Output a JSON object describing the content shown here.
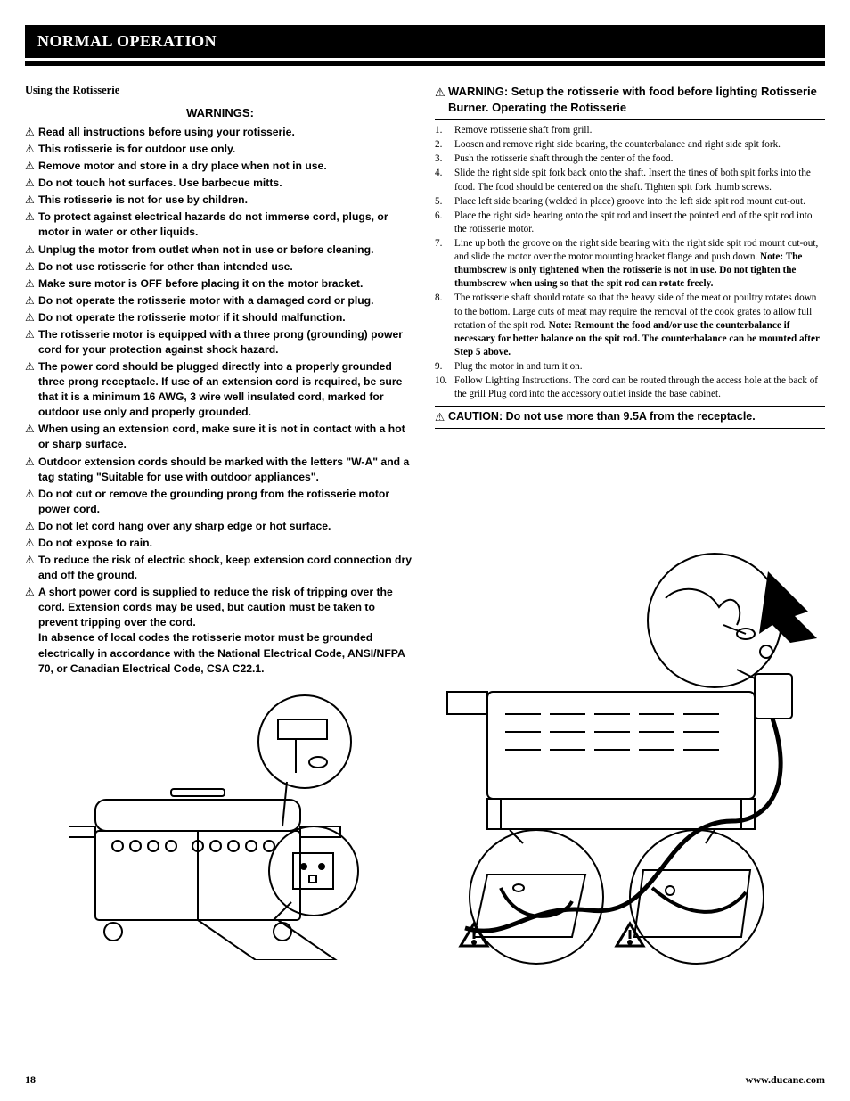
{
  "header": {
    "title": "NORMAL OPERATION"
  },
  "left": {
    "subtitle": "Using the Rotisserie",
    "warnings_title": "WARNINGS:",
    "warnings": [
      "Read all instructions before using your rotisserie.",
      "This rotisserie is for outdoor use only.",
      "Remove motor and store in a dry place when not in use.",
      "Do not touch hot surfaces. Use barbecue mitts.",
      "This rotisserie is not for use by children.",
      "To protect against electrical hazards do not immerse cord, plugs, or motor in water or other liquids.",
      "Unplug the motor from outlet when not in use or before cleaning.",
      "Do not use rotisserie for other than intended use.",
      "Make sure motor is OFF before placing it on the motor bracket.",
      "Do not operate the rotisserie motor with a damaged cord or plug.",
      "Do not operate the rotisserie motor if it should malfunction.",
      "The rotisserie motor is equipped with a three prong (grounding) power cord for your protection against shock hazard.",
      "The power cord should be plugged directly into a properly grounded three prong receptacle. If use of an extension cord is required, be sure that it is a minimum 16 AWG, 3 wire well insulated cord, marked for outdoor use only and properly grounded.",
      "When using an extension cord, make sure it is not in contact with a hot or sharp surface.",
      "Outdoor extension cords should be marked with the letters \"W-A\" and a tag stating \"Suitable for use with outdoor appliances\".",
      "Do not cut or remove the grounding prong from the rotisserie motor power cord.",
      "Do not let cord hang over any sharp edge or hot surface.",
      "Do not expose to rain.",
      "To reduce the risk of electric shock, keep extension cord connection dry and off the ground.",
      "A short power cord is supplied to reduce the risk of tripping over the cord. Extension cords may be used, but caution must be taken to prevent tripping over the cord.\nIn absence of local codes the rotisserie motor must be grounded electrically in accordance with the National Electrical Code, ANSI/NFPA 70, or Canadian Electrical Code, CSA C22.1."
    ]
  },
  "right": {
    "title": "WARNING: Setup the rotisserie with food before lighting Rotisserie Burner. Operating the Rotisserie",
    "steps": [
      {
        "n": "1.",
        "t": "Remove rotisserie shaft from grill."
      },
      {
        "n": "2.",
        "t": "Loosen and remove right side bearing, the counterbalance and right side spit fork."
      },
      {
        "n": "3.",
        "t": "Push the rotisserie shaft through the center of the food."
      },
      {
        "n": "4.",
        "t": "Slide the right side spit fork back onto the shaft. Insert the tines of both spit forks into the food. The food should be centered on the shaft. Tighten spit fork thumb screws."
      },
      {
        "n": "5.",
        "t": "Place left side bearing (welded in place) groove into the left side spit rod mount cut-out."
      },
      {
        "n": "6.",
        "t": "Place the right side bearing onto the spit rod and insert the pointed end of the spit rod into the rotisserie motor."
      },
      {
        "n": "7.",
        "t": "Line up both the groove on the right side bearing with the right side spit rod mount cut-out, and slide the motor over the motor mounting bracket flange and push down. ",
        "bold": "Note: The thumbscrew is only tightened when the rotisserie is not in use. Do not tighten the thumbscrew when using so that the spit rod can rotate freely."
      },
      {
        "n": "8.",
        "t": "The rotisserie shaft should rotate so that the heavy side of the meat or poultry rotates down to the bottom. Large cuts of meat may require the removal of the cook grates to allow full rotation of the spit rod. ",
        "bold": "Note: Remount the food and/or use the counterbalance if necessary for better balance on the spit rod. The counterbalance can be mounted after Step 5 above."
      },
      {
        "n": "9.",
        "t": "Plug the motor in and turn it on."
      },
      {
        "n": "10.",
        "t": "Follow Lighting Instructions. The cord can be routed through the access hole at the back of the grill Plug cord into the accessory outlet inside the base cabinet."
      }
    ],
    "caution": "CAUTION: Do not use more than 9.5A from the receptacle."
  },
  "footer": {
    "page": "18",
    "url": "www.ducane.com"
  },
  "style": {
    "bg": "#ffffff",
    "fg": "#000000",
    "header_bg": "#000000",
    "header_fg": "#ffffff",
    "triangle_glyph": "⚠",
    "warn_fontsize": 12.2,
    "step_fontsize": 11.2
  }
}
